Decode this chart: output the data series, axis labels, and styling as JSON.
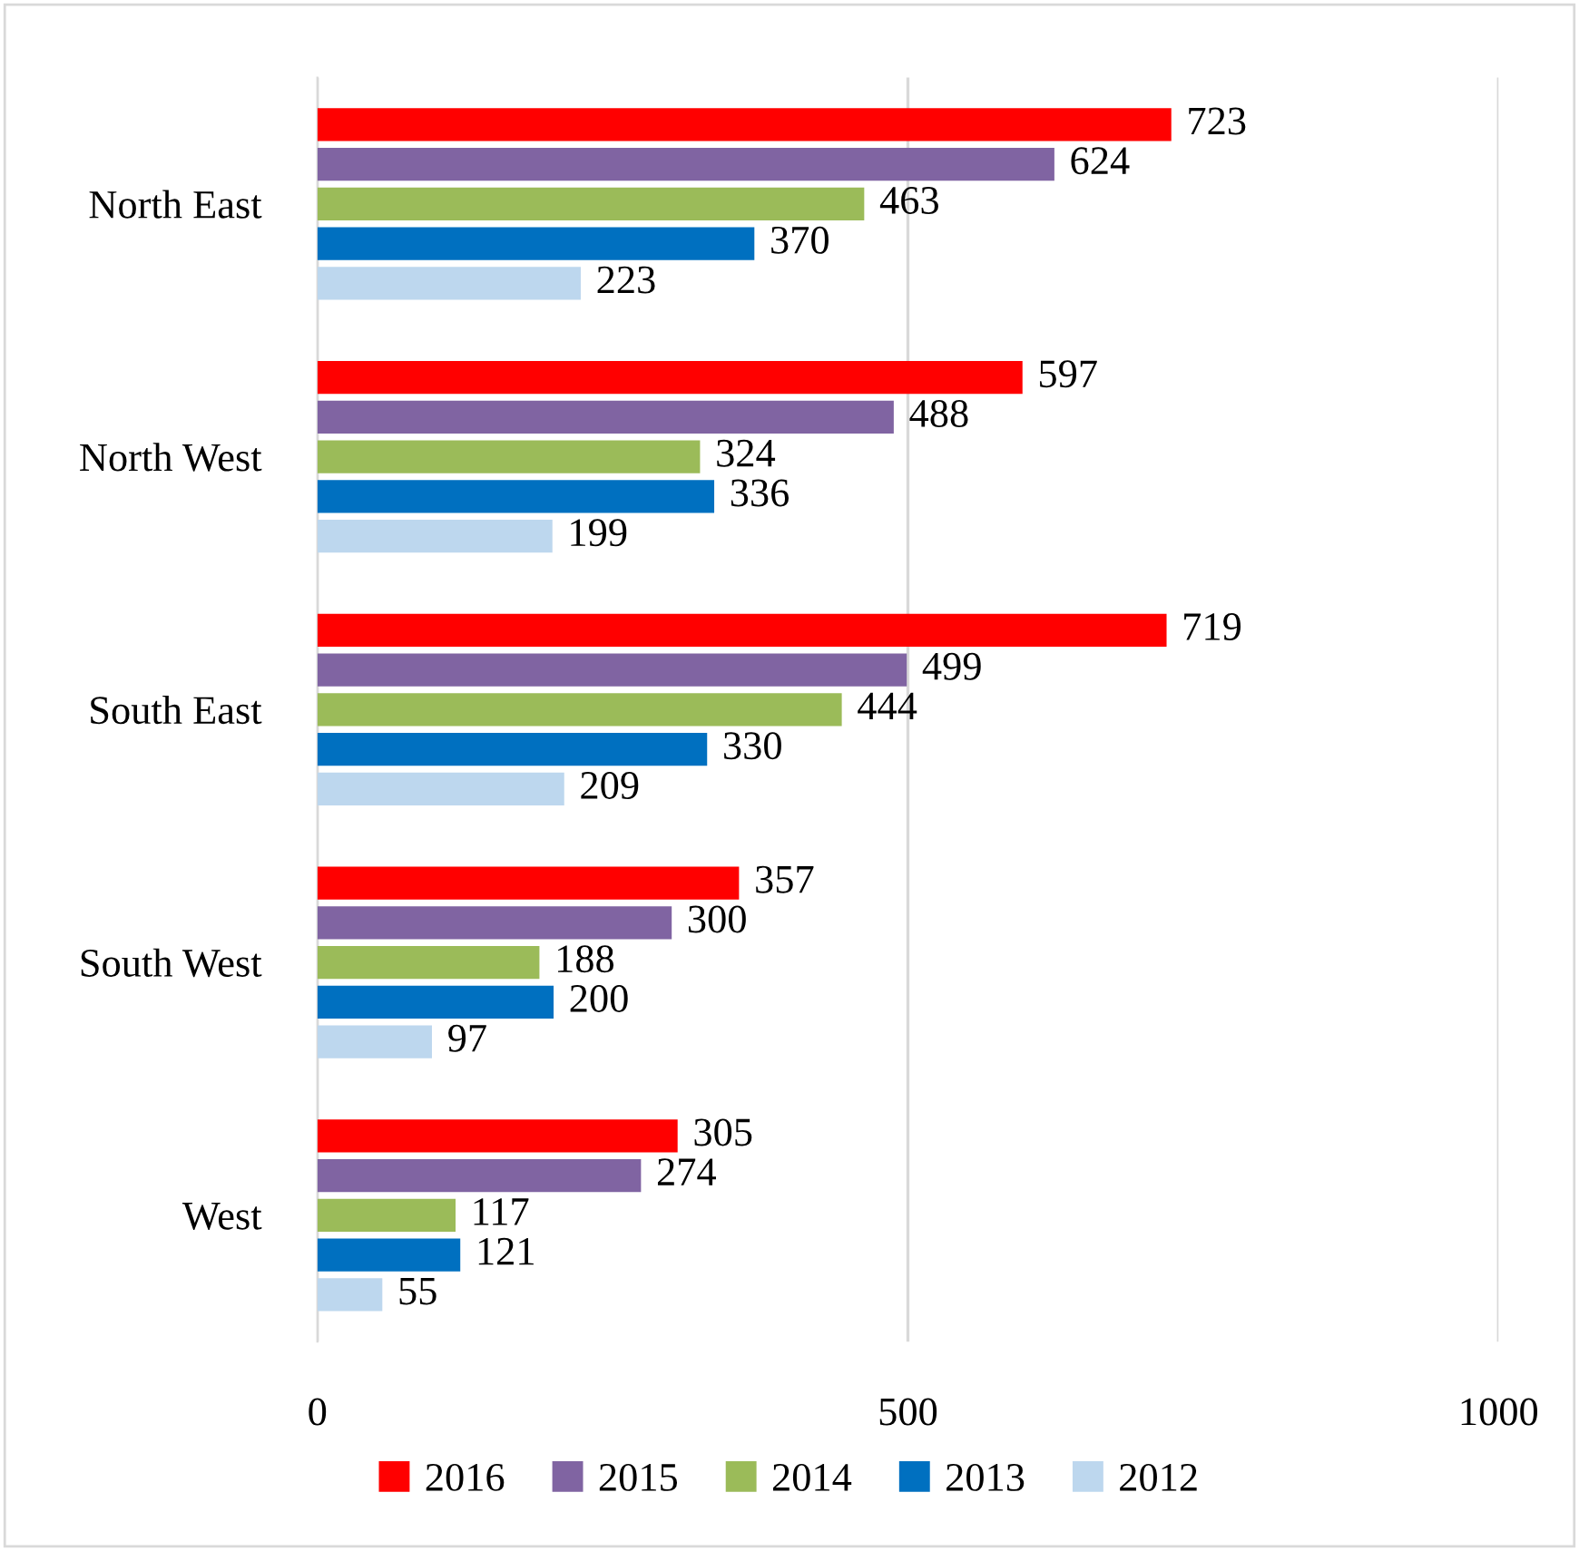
{
  "chart_data": {
    "type": "bar",
    "orientation": "horizontal",
    "categories": [
      "North East",
      "North West",
      "South East",
      "South West",
      "West"
    ],
    "series": [
      {
        "name": "2016",
        "color": "#ff0000",
        "values": [
          723,
          597,
          719,
          357,
          305
        ]
      },
      {
        "name": "2015",
        "color": "#8064a2",
        "values": [
          624,
          488,
          499,
          300,
          274
        ]
      },
      {
        "name": "2014",
        "color": "#9bbb59",
        "values": [
          463,
          324,
          444,
          188,
          117
        ]
      },
      {
        "name": "2013",
        "color": "#0070c0",
        "values": [
          370,
          336,
          330,
          200,
          121
        ]
      },
      {
        "name": "2012",
        "color": "#bdd7ee",
        "values": [
          223,
          199,
          209,
          97,
          55
        ]
      }
    ],
    "xlim": [
      0,
      1000
    ],
    "xticks": [
      0,
      500,
      1000
    ],
    "grid": "x",
    "legend": "bottom",
    "data_labels": true
  }
}
